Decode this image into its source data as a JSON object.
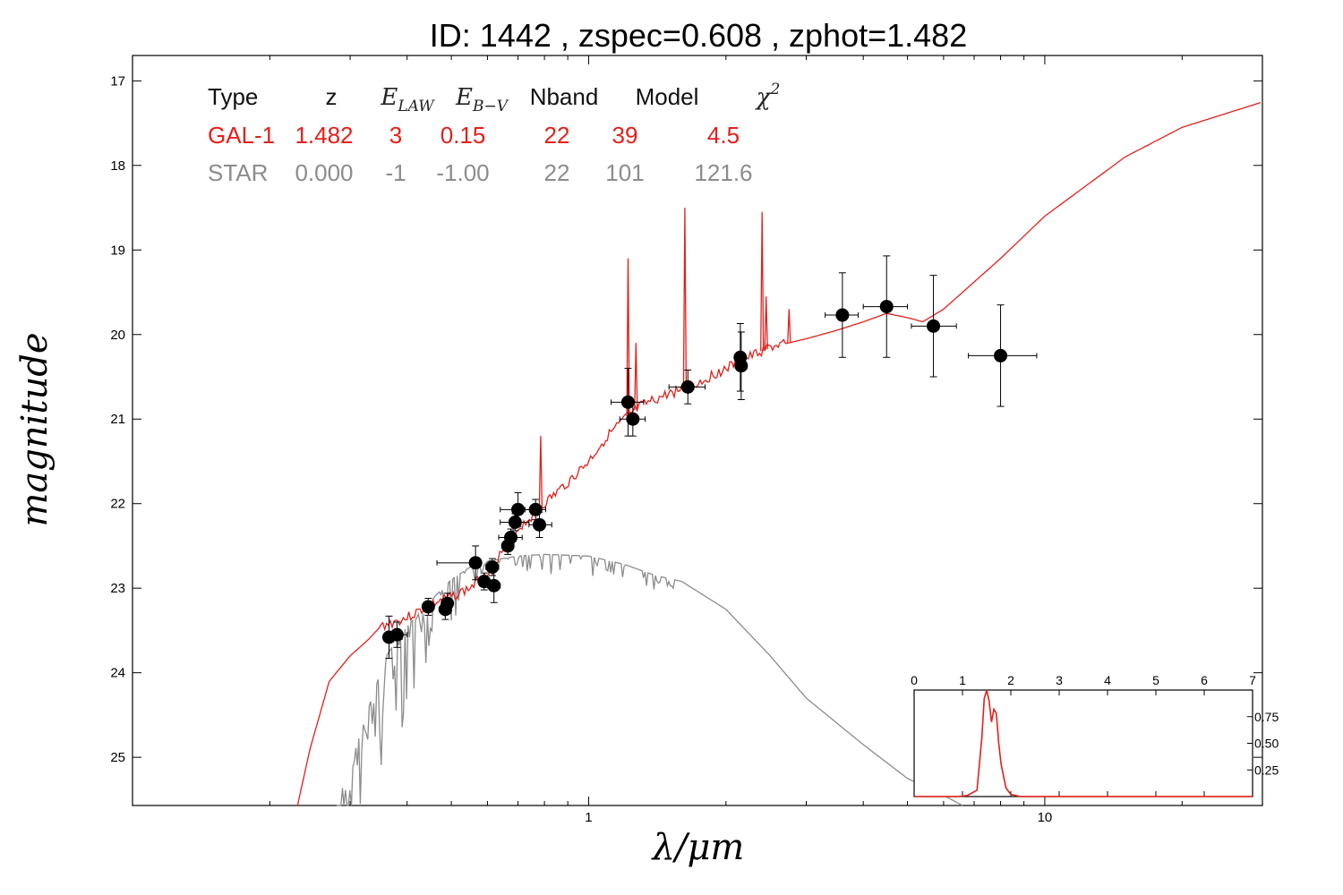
{
  "title": "ID:  1442  , zspec=0.608 , zphot=1.482",
  "colors": {
    "galaxy": "#e3201b",
    "star": "#8c8c8c",
    "points": "#000000",
    "frame": "#000000"
  },
  "chart_data": [
    {
      "type": "scatter",
      "title": "ID:  1442  , zspec=0.608 , zphot=1.482",
      "xlabel": "λ/μm",
      "ylabel": "magnitude",
      "xscale": "log",
      "xlim": [
        0.1,
        30
      ],
      "ylim": [
        25.57,
        16.7
      ],
      "y_inverted": true,
      "x_tick_labels": [
        "1",
        "10"
      ],
      "y_tick_labels": [
        "17",
        "18",
        "19",
        "20",
        "21",
        "22",
        "23",
        "24",
        "25"
      ],
      "fit_table": {
        "headers": [
          "Type",
          "z",
          "E_LAW",
          "E_B-V",
          "Nband",
          "Model",
          "χ2"
        ],
        "rows": [
          {
            "color": "#e3201b",
            "cells": [
              "GAL-1",
              "1.482",
              "3",
              "0.15",
              "22",
              "39",
              "4.5"
            ]
          },
          {
            "color": "#8c8c8c",
            "cells": [
              "STAR",
              "0.000",
              "-1",
              "-1.00",
              "22",
              "101",
              "121.6"
            ]
          }
        ]
      },
      "observed_points": [
        {
          "x": 0.365,
          "y": 23.58,
          "xerr_lo": 0.01,
          "xerr_hi": 0.025,
          "yerr": 0.25
        },
        {
          "x": 0.38,
          "y": 23.55,
          "xerr_lo": 0.01,
          "xerr_hi": 0.02,
          "yerr": 0.15
        },
        {
          "x": 0.445,
          "y": 23.22,
          "xerr_lo": 0.012,
          "xerr_hi": 0.01,
          "yerr": 0.1
        },
        {
          "x": 0.485,
          "y": 23.25,
          "xerr_lo": 0.015,
          "xerr_hi": 0.01,
          "yerr": 0.12
        },
        {
          "x": 0.49,
          "y": 23.18,
          "xerr_lo": 0.012,
          "xerr_hi": 0.012,
          "yerr": 0.12
        },
        {
          "x": 0.565,
          "y": 22.7,
          "xerr_lo": 0.1,
          "xerr_hi": 0.0,
          "yerr": 0.2
        },
        {
          "x": 0.59,
          "y": 22.92,
          "xerr_lo": 0.015,
          "xerr_hi": 0.015,
          "yerr": 0.1
        },
        {
          "x": 0.615,
          "y": 22.75,
          "xerr_lo": 0.02,
          "xerr_hi": 0.02,
          "yerr": 0.1
        },
        {
          "x": 0.62,
          "y": 22.97,
          "xerr_lo": 0.02,
          "xerr_hi": 0.02,
          "yerr": 0.2
        },
        {
          "x": 0.665,
          "y": 22.5,
          "xerr_lo": 0.02,
          "xerr_hi": 0.02,
          "yerr": 0.1
        },
        {
          "x": 0.675,
          "y": 22.4,
          "xerr_lo": 0.04,
          "xerr_hi": 0.04,
          "yerr": 0.1
        },
        {
          "x": 0.69,
          "y": 22.22,
          "xerr_lo": 0.05,
          "xerr_hi": 0.05,
          "yerr": 0.1
        },
        {
          "x": 0.7,
          "y": 22.07,
          "xerr_lo": 0.06,
          "xerr_hi": 0.06,
          "yerr": 0.2
        },
        {
          "x": 0.765,
          "y": 22.07,
          "xerr_lo": 0.04,
          "xerr_hi": 0.04,
          "yerr": 0.12
        },
        {
          "x": 0.78,
          "y": 22.25,
          "xerr_lo": 0.04,
          "xerr_hi": 0.05,
          "yerr": 0.15
        },
        {
          "x": 1.22,
          "y": 20.8,
          "xerr_lo": 0.1,
          "xerr_hi": 0.1,
          "yerr": 0.4
        },
        {
          "x": 1.25,
          "y": 21.0,
          "xerr_lo": 0.08,
          "xerr_hi": 0.08,
          "yerr": 0.2
        },
        {
          "x": 1.65,
          "y": 20.62,
          "xerr_lo": 0.15,
          "xerr_hi": 0.15,
          "yerr": 0.2
        },
        {
          "x": 2.15,
          "y": 20.27,
          "xerr_lo": 0.0,
          "xerr_hi": 0.0,
          "yerr": 0.4
        },
        {
          "x": 2.16,
          "y": 20.37,
          "xerr_lo": 0.0,
          "xerr_hi": 0.0,
          "yerr": 0.4
        },
        {
          "x": 3.6,
          "y": 19.77,
          "xerr_lo": 0.3,
          "xerr_hi": 0.3,
          "yerr": 0.5
        },
        {
          "x": 4.5,
          "y": 19.67,
          "xerr_lo": 0.5,
          "xerr_hi": 0.5,
          "yerr": 0.6
        },
        {
          "x": 5.7,
          "y": 19.9,
          "xerr_lo": 0.6,
          "xerr_hi": 0.7,
          "yerr": 0.6
        },
        {
          "x": 8.0,
          "y": 20.25,
          "xerr_lo": 1.2,
          "xerr_hi": 1.6,
          "yerr": 0.6
        }
      ],
      "galaxy_template": {
        "continuum": [
          [
            0.23,
            25.57
          ],
          [
            0.245,
            24.9
          ],
          [
            0.27,
            24.1
          ],
          [
            0.3,
            23.8
          ],
          [
            0.33,
            23.6
          ],
          [
            0.35,
            23.45
          ],
          [
            0.4,
            23.35
          ],
          [
            0.45,
            23.2
          ],
          [
            0.5,
            23.1
          ],
          [
            0.55,
            23.0
          ],
          [
            0.6,
            22.8
          ],
          [
            0.65,
            22.55
          ],
          [
            0.7,
            22.3
          ],
          [
            0.75,
            22.15
          ],
          [
            0.8,
            22.0
          ],
          [
            0.9,
            21.75
          ],
          [
            1.0,
            21.5
          ],
          [
            1.1,
            21.2
          ],
          [
            1.2,
            21.0
          ],
          [
            1.3,
            20.85
          ],
          [
            1.5,
            20.7
          ],
          [
            1.7,
            20.6
          ],
          [
            2.0,
            20.4
          ],
          [
            2.5,
            20.15
          ],
          [
            3.0,
            20.05
          ],
          [
            3.5,
            19.95
          ],
          [
            4.0,
            19.85
          ],
          [
            4.5,
            19.75
          ],
          [
            5.0,
            19.8
          ],
          [
            5.4,
            19.85
          ],
          [
            6.0,
            19.7
          ],
          [
            8.0,
            19.1
          ],
          [
            10.0,
            18.6
          ],
          [
            15.0,
            17.9
          ],
          [
            20.0,
            17.55
          ],
          [
            30.0,
            17.25
          ]
        ],
        "emission_lines": [
          [
            0.785,
            21.2
          ],
          [
            1.22,
            19.1
          ],
          [
            1.625,
            18.5
          ],
          [
            2.4,
            18.55
          ],
          [
            2.45,
            19.55
          ],
          [
            1.27,
            20.1
          ],
          [
            2.75,
            19.7
          ]
        ]
      },
      "star_template": [
        [
          0.28,
          25.57
        ],
        [
          0.3,
          25.1
        ],
        [
          0.33,
          24.4
        ],
        [
          0.36,
          23.8
        ],
        [
          0.4,
          23.45
        ],
        [
          0.45,
          23.15
        ],
        [
          0.5,
          22.9
        ],
        [
          0.55,
          22.75
        ],
        [
          0.6,
          22.68
        ],
        [
          0.7,
          22.62
        ],
        [
          0.8,
          22.6
        ],
        [
          1.0,
          22.62
        ],
        [
          1.2,
          22.72
        ],
        [
          1.4,
          22.85
        ],
        [
          1.6,
          22.92
        ],
        [
          2.0,
          23.25
        ],
        [
          2.5,
          23.8
        ],
        [
          3.0,
          24.3
        ],
        [
          4.0,
          24.85
        ],
        [
          5.0,
          25.25
        ],
        [
          6.0,
          25.45
        ],
        [
          6.6,
          25.57
        ]
      ]
    },
    {
      "type": "line",
      "xlim": [
        0,
        7
      ],
      "ylim": [
        0,
        1.0
      ],
      "x_tick_labels": [
        "0",
        "1",
        "2",
        "3",
        "4",
        "5",
        "6",
        "7"
      ],
      "y_tick_labels": [
        "0.25",
        "0.50",
        "0.75"
      ],
      "x": [
        0,
        0.9,
        1.1,
        1.3,
        1.4,
        1.45,
        1.5,
        1.55,
        1.6,
        1.65,
        1.7,
        1.75,
        1.8,
        1.9,
        2.0,
        2.2,
        7.0
      ],
      "y": [
        0.0,
        0.0,
        0.01,
        0.06,
        0.55,
        0.92,
        1.0,
        0.9,
        0.7,
        0.82,
        0.78,
        0.5,
        0.3,
        0.08,
        0.02,
        0.0,
        0.0
      ]
    }
  ]
}
